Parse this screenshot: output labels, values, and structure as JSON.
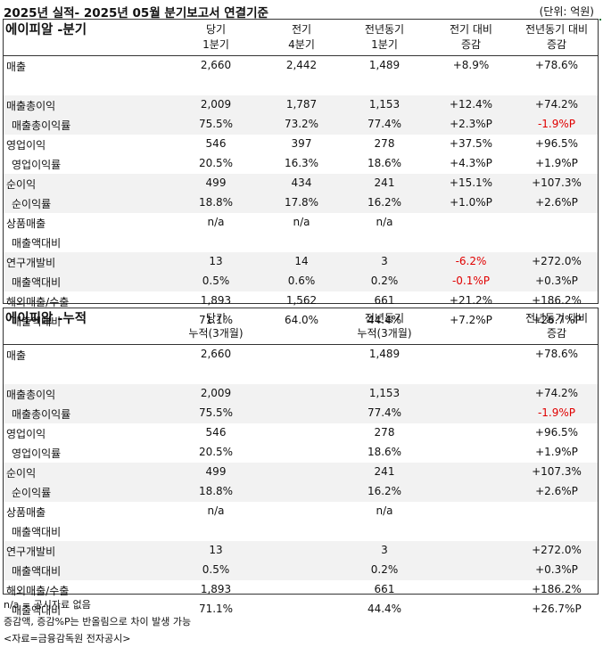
{
  "title": "2025년 실적- 2025년 05월 분기보고서 연결기준",
  "unit": "(단위: 억원)",
  "quarterly": {
    "name": "에이피알 -분기",
    "headers": [
      {
        "l1": "당기",
        "l2": "1분기"
      },
      {
        "l1": "전기",
        "l2": "4분기"
      },
      {
        "l1": "전년동기",
        "l2": "1분기"
      },
      {
        "l1": "전기 대비",
        "l2": "증감"
      },
      {
        "l1": "전년동기 대비",
        "l2": "증감"
      }
    ],
    "rows": [
      {
        "label": "매출",
        "sub": false,
        "vals": [
          "2,660",
          "2,442",
          "1,489",
          "+8.9%",
          "+78.6%"
        ],
        "red": [
          false,
          false,
          false,
          false,
          false
        ]
      },
      {
        "label": "",
        "sub": false,
        "vals": [
          "",
          "",
          "",
          "",
          ""
        ],
        "red": [
          false,
          false,
          false,
          false,
          false
        ]
      },
      {
        "label": "매출총이익",
        "sub": false,
        "vals": [
          "2,009",
          "1,787",
          "1,153",
          "+12.4%",
          "+74.2%"
        ],
        "red": [
          false,
          false,
          false,
          false,
          false
        ]
      },
      {
        "label": "매출총이익률",
        "sub": true,
        "vals": [
          "75.5%",
          "73.2%",
          "77.4%",
          "+2.3%P",
          "-1.9%P"
        ],
        "red": [
          false,
          false,
          false,
          false,
          true
        ]
      },
      {
        "label": "영업이익",
        "sub": false,
        "vals": [
          "546",
          "397",
          "278",
          "+37.5%",
          "+96.5%"
        ],
        "red": [
          false,
          false,
          false,
          false,
          false
        ]
      },
      {
        "label": "영업이익률",
        "sub": true,
        "vals": [
          "20.5%",
          "16.3%",
          "18.6%",
          "+4.3%P",
          "+1.9%P"
        ],
        "red": [
          false,
          false,
          false,
          false,
          false
        ]
      },
      {
        "label": "순이익",
        "sub": false,
        "vals": [
          "499",
          "434",
          "241",
          "+15.1%",
          "+107.3%"
        ],
        "red": [
          false,
          false,
          false,
          false,
          false
        ]
      },
      {
        "label": "순이익률",
        "sub": true,
        "vals": [
          "18.8%",
          "17.8%",
          "16.2%",
          "+1.0%P",
          "+2.6%P"
        ],
        "red": [
          false,
          false,
          false,
          false,
          false
        ]
      },
      {
        "label": "상품매출",
        "sub": false,
        "vals": [
          "n/a",
          "n/a",
          "n/a",
          "",
          ""
        ],
        "red": [
          false,
          false,
          false,
          false,
          false
        ]
      },
      {
        "label": "매출액대비",
        "sub": true,
        "vals": [
          "",
          "",
          "",
          "",
          ""
        ],
        "red": [
          false,
          false,
          false,
          false,
          false
        ]
      },
      {
        "label": "연구개발비",
        "sub": false,
        "vals": [
          "13",
          "14",
          "3",
          "-6.2%",
          "+272.0%"
        ],
        "red": [
          false,
          false,
          false,
          true,
          false
        ]
      },
      {
        "label": "매출액대비",
        "sub": true,
        "vals": [
          "0.5%",
          "0.6%",
          "0.2%",
          "-0.1%P",
          "+0.3%P"
        ],
        "red": [
          false,
          false,
          false,
          true,
          false
        ]
      },
      {
        "label": "해외매출/수출",
        "sub": false,
        "vals": [
          "1,893",
          "1,562",
          "661",
          "+21.2%",
          "+186.2%"
        ],
        "red": [
          false,
          false,
          false,
          false,
          false
        ]
      },
      {
        "label": "매출액대비",
        "sub": true,
        "vals": [
          "71.1%",
          "64.0%",
          "44.4%",
          "+7.2%P",
          "+26.7%P"
        ],
        "red": [
          false,
          false,
          false,
          false,
          false
        ]
      }
    ]
  },
  "cumulative": {
    "name": "에이피알 -누적",
    "headers": [
      {
        "l1": "당기",
        "l2": "누적(3개월)"
      },
      {
        "l1": "전년동기",
        "l2": "누적(3개월)"
      },
      {
        "l1": "전년동기 대비",
        "l2": "증감"
      }
    ],
    "rows": [
      {
        "label": "매출",
        "sub": false,
        "vals": [
          "2,660",
          "1,489",
          "+78.6%"
        ],
        "red": [
          false,
          false,
          false
        ]
      },
      {
        "label": "",
        "sub": false,
        "vals": [
          "",
          "",
          ""
        ],
        "red": [
          false,
          false,
          false
        ]
      },
      {
        "label": "매출총이익",
        "sub": false,
        "vals": [
          "2,009",
          "1,153",
          "+74.2%"
        ],
        "red": [
          false,
          false,
          false
        ]
      },
      {
        "label": "매출총이익률",
        "sub": true,
        "vals": [
          "75.5%",
          "77.4%",
          "-1.9%P"
        ],
        "red": [
          false,
          false,
          true
        ]
      },
      {
        "label": "영업이익",
        "sub": false,
        "vals": [
          "546",
          "278",
          "+96.5%"
        ],
        "red": [
          false,
          false,
          false
        ]
      },
      {
        "label": "영업이익률",
        "sub": true,
        "vals": [
          "20.5%",
          "18.6%",
          "+1.9%P"
        ],
        "red": [
          false,
          false,
          false
        ]
      },
      {
        "label": "순이익",
        "sub": false,
        "vals": [
          "499",
          "241",
          "+107.3%"
        ],
        "red": [
          false,
          false,
          false
        ]
      },
      {
        "label": "순이익률",
        "sub": true,
        "vals": [
          "18.8%",
          "16.2%",
          "+2.6%P"
        ],
        "red": [
          false,
          false,
          false
        ]
      },
      {
        "label": "상품매출",
        "sub": false,
        "vals": [
          "n/a",
          "n/a",
          ""
        ],
        "red": [
          false,
          false,
          false
        ]
      },
      {
        "label": "매출액대비",
        "sub": true,
        "vals": [
          "",
          "",
          ""
        ],
        "red": [
          false,
          false,
          false
        ]
      },
      {
        "label": "연구개발비",
        "sub": false,
        "vals": [
          "13",
          "3",
          "+272.0%"
        ],
        "red": [
          false,
          false,
          false
        ]
      },
      {
        "label": "매출액대비",
        "sub": true,
        "vals": [
          "0.5%",
          "0.2%",
          "+0.3%P"
        ],
        "red": [
          false,
          false,
          false
        ]
      },
      {
        "label": "해외매출/수출",
        "sub": false,
        "vals": [
          "1,893",
          "661",
          "+186.2%"
        ],
        "red": [
          false,
          false,
          false
        ]
      },
      {
        "label": "매출액대비",
        "sub": true,
        "vals": [
          "71.1%",
          "44.4%",
          "+26.7%P"
        ],
        "red": [
          false,
          false,
          false
        ]
      }
    ]
  },
  "notes": [
    "n/a = 공시자료 없음",
    "증감액, 증감%P는 반올림으로 차이 발생 가능",
    "<자료=금융감독원 전자공시>"
  ]
}
